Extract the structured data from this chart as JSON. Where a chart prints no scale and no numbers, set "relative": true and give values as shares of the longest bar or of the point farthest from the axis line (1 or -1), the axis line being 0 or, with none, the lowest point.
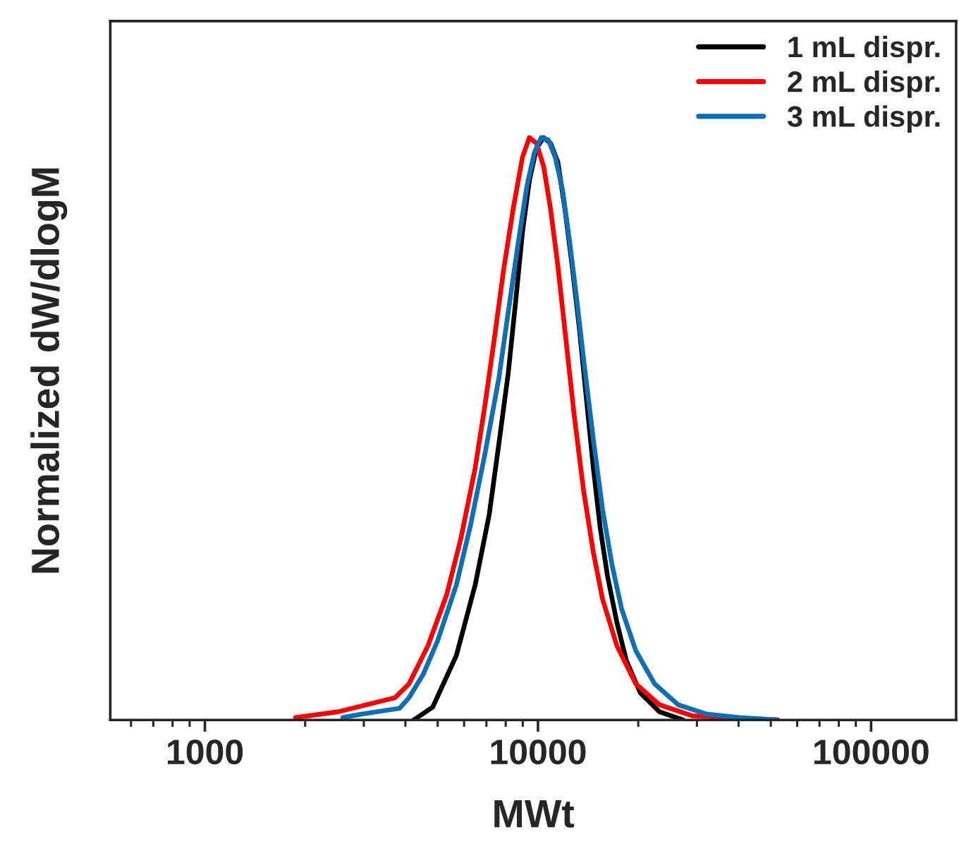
{
  "chart_data": {
    "type": "line",
    "xlabel": "MWt",
    "ylabel": "Normalized dW/dlogM",
    "relative": true,
    "log": "x",
    "xlim": [
      520,
      180000
    ],
    "xticks": [
      1000,
      10000,
      100000
    ],
    "legend": "top right",
    "grid": false,
    "tick_labels": "x",
    "series": [
      {
        "name": "1 mL dispr.",
        "color": "#000000",
        "x": [
          4236,
          4830,
          5690,
          6480,
          7140,
          7630,
          8140,
          8560,
          8980,
          9420,
          9900,
          10400,
          10910,
          11470,
          12050,
          12660,
          13290,
          13960,
          14660,
          15390,
          16170,
          17260,
          18420,
          20300,
          23150,
          27250
        ],
        "values": [
          0,
          0.022,
          0.111,
          0.232,
          0.353,
          0.474,
          0.595,
          0.716,
          0.837,
          0.926,
          0.982,
          1.0,
          0.99,
          0.958,
          0.877,
          0.78,
          0.676,
          0.554,
          0.433,
          0.328,
          0.247,
          0.167,
          0.102,
          0.046,
          0.014,
          0
        ]
      },
      {
        "name": "2 mL dispr.",
        "color": "#ff0000",
        "x": [
          1871,
          2512,
          3718,
          4100,
          4670,
          5320,
          5870,
          6480,
          6920,
          7380,
          7880,
          8420,
          8980,
          9420,
          9900,
          10400,
          10910,
          11470,
          12050,
          12850,
          13710,
          14660,
          15630,
          17260,
          19660,
          23150,
          29110,
          52360
        ],
        "values": [
          0.004,
          0.014,
          0.038,
          0.062,
          0.127,
          0.215,
          0.312,
          0.433,
          0.538,
          0.651,
          0.772,
          0.877,
          0.966,
          1.0,
          0.99,
          0.95,
          0.877,
          0.78,
          0.668,
          0.522,
          0.393,
          0.288,
          0.207,
          0.127,
          0.062,
          0.026,
          0.007,
          0
        ]
      },
      {
        "name": "3 mL dispr.",
        "color": "#0f6eb4",
        "x": [
          2594,
          2958,
          3373,
          3840,
          4100,
          4520,
          4990,
          5690,
          6270,
          6920,
          7630,
          8140,
          8690,
          9270,
          9750,
          10230,
          10740,
          11270,
          11850,
          12450,
          13060,
          13710,
          14660,
          15630,
          16710,
          17820,
          19660,
          22390,
          26360,
          32060,
          40370,
          52360
        ],
        "values": [
          0.004,
          0.01,
          0.015,
          0.02,
          0.038,
          0.078,
          0.135,
          0.232,
          0.334,
          0.455,
          0.587,
          0.7,
          0.813,
          0.918,
          0.974,
          1.0,
          0.996,
          0.966,
          0.91,
          0.821,
          0.724,
          0.619,
          0.482,
          0.361,
          0.264,
          0.191,
          0.119,
          0.062,
          0.026,
          0.01,
          0.004,
          0
        ]
      }
    ]
  }
}
